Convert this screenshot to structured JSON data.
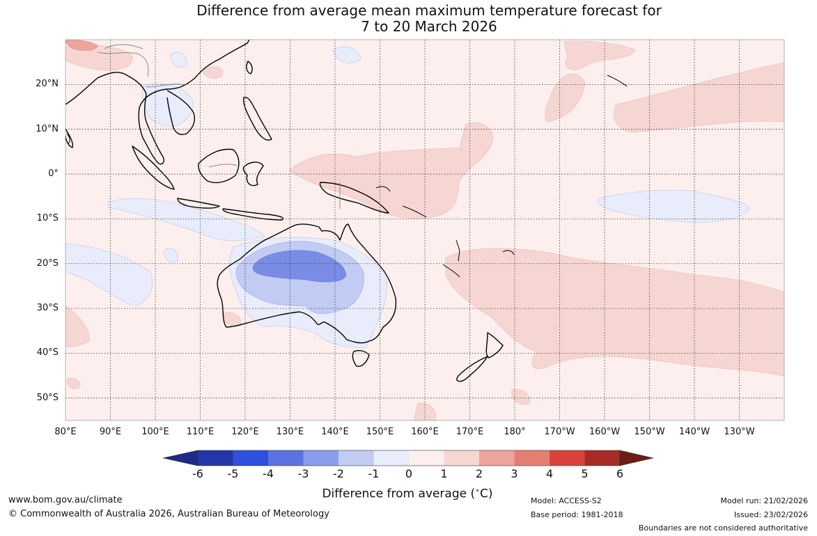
{
  "title": {
    "line1": "Difference from average mean maximum temperature forecast for",
    "line2": "7 to 20 March 2026"
  },
  "map": {
    "latitude_labels": [
      "20°N",
      "10°N",
      "0°",
      "10°S",
      "20°S",
      "30°S",
      "40°S",
      "50°S"
    ],
    "longitude_labels": [
      "80°E",
      "90°E",
      "100°E",
      "110°E",
      "120°E",
      "130°E",
      "140°E",
      "150°E",
      "160°E",
      "170°E",
      "180°",
      "170°W",
      "160°W",
      "150°W",
      "140°W",
      "130°W"
    ],
    "extent": {
      "lon_min": 80,
      "lon_max": 240,
      "lat_min": -55,
      "lat_max": 30
    }
  },
  "colorbar": {
    "ticks": [
      "-6",
      "-5",
      "-4",
      "-3",
      "-2",
      "-1",
      "0",
      "1",
      "2",
      "3",
      "4",
      "5",
      "6"
    ],
    "colors": [
      "#1d2a86",
      "#2536a8",
      "#2f50de",
      "#5c74e2",
      "#8a9ceb",
      "#c2cbf3",
      "#e8ecfb",
      "#fcefed",
      "#f6d6d3",
      "#eda49c",
      "#e57f74",
      "#d9443a",
      "#a72c25",
      "#6e1d16"
    ],
    "label": "Difference from average (°C)",
    "label_main": "Difference from average (",
    "label_sup": "∘",
    "label_unit": "C)"
  },
  "footer": {
    "website": "www.bom.gov.au/climate",
    "copyright": "© Commonwealth of Australia 2026, Australian Bureau of Meteorology",
    "model": "Model: ACCESS-S2",
    "base_period": "Base period: 1981-2018",
    "model_run": "Model run: 21/02/2026",
    "issued": "Issued: 23/02/2026",
    "disclaimer": "Boundaries are not considered authoritative"
  }
}
